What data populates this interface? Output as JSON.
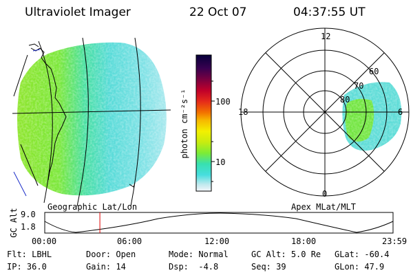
{
  "header": {
    "title": "Ultraviolet Imager",
    "date": "22 Oct 07",
    "time": "04:37:55 UT"
  },
  "colorbar": {
    "label": "photon cm⁻²s⁻¹",
    "ticks": [
      "100",
      "10"
    ],
    "gradient": [
      "#f4f6fa",
      "#bfe9ee",
      "#46dede",
      "#38e0b0",
      "#7dec35",
      "#c8ec10",
      "#f3f000",
      "#f7b800",
      "#f27000",
      "#e52a1a",
      "#c0002a",
      "#7a0040",
      "#3a0050",
      "#06003a"
    ]
  },
  "geo_panel": {
    "caption": "Geographic Lat/Lon"
  },
  "polar_panel": {
    "caption": "Apex MLat/MLT",
    "lat_labels": [
      "80",
      "70",
      "60"
    ],
    "mlt_labels": [
      "12",
      "18",
      "6",
      "0"
    ]
  },
  "timeline": {
    "ylabel": "GC Alt",
    "yticks": [
      "9.0",
      "1.8"
    ],
    "xticks": [
      "00:00",
      "06:00",
      "12:00",
      "18:00",
      "23:59"
    ],
    "marker_fraction": 0.1583
  },
  "status": {
    "row1": [
      {
        "key": "Flt:",
        "value": "LBHL"
      },
      {
        "key": "Door:",
        "value": "Open"
      },
      {
        "key": "Mode:",
        "value": "Normal"
      },
      {
        "key": "GC Alt:",
        "value": "5.0 Re"
      },
      {
        "key": "GLat:",
        "value": "-60.4"
      }
    ],
    "row2": [
      {
        "key": "IP:",
        "value": "36.0"
      },
      {
        "key": "Gain:",
        "value": "14"
      },
      {
        "key": "Dsp:",
        "value": "  -4.8"
      },
      {
        "key": "Seq:",
        "value": "39"
      },
      {
        "key": "GLon:",
        "value": "47.9"
      }
    ]
  }
}
